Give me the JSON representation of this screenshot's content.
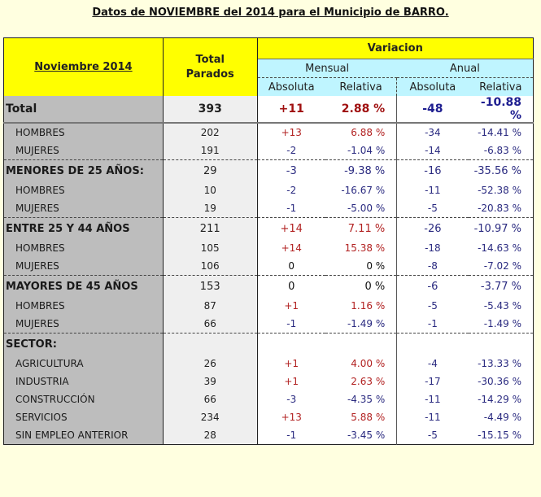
{
  "title": "Datos de NOVIEMBRE del 2014 para el Municipio de BARRO.",
  "header": {
    "period_label": "Noviembre 2014",
    "total_label_line1": "Total",
    "total_label_line2": "Parados",
    "variacion": "Variacion",
    "mensual": "Mensual",
    "anual": "Anual",
    "absoluta_m": "Absoluta",
    "relativa_m": "Relativa",
    "absoluta_a": "Absoluta",
    "relativa_a": "Relativa"
  },
  "colors": {
    "background": "#FFFFE0",
    "header_yellow": "#FFFF00",
    "header_cyan": "#BFF5FF",
    "label_gray": "#BDBDBD",
    "total_gray": "#EFEFEF",
    "positive": "#B22222",
    "negative": "#2A2A80"
  },
  "rows": [
    {
      "label": "Total",
      "total": "393",
      "m_abs": "+11",
      "m_rel": "2.88 %",
      "a_abs": "-48",
      "a_rel": "-10.88 %"
    },
    {
      "label": "HOMBRES",
      "total": "202",
      "m_abs": "+13",
      "m_rel": "6.88 %",
      "a_abs": "-34",
      "a_rel": "-14.41 %"
    },
    {
      "label": "MUJERES",
      "total": "191",
      "m_abs": "-2",
      "m_rel": "-1.04 %",
      "a_abs": "-14",
      "a_rel": "-6.83 %"
    },
    {
      "label": "MENORES DE 25 AÑOS:",
      "total": "29",
      "m_abs": "-3",
      "m_rel": "-9.38 %",
      "a_abs": "-16",
      "a_rel": "-35.56 %"
    },
    {
      "label": "HOMBRES",
      "total": "10",
      "m_abs": "-2",
      "m_rel": "-16.67 %",
      "a_abs": "-11",
      "a_rel": "-52.38 %"
    },
    {
      "label": "MUJERES",
      "total": "19",
      "m_abs": "-1",
      "m_rel": "-5.00 %",
      "a_abs": "-5",
      "a_rel": "-20.83 %"
    },
    {
      "label": "ENTRE 25 Y 44 AÑOS",
      "total": "211",
      "m_abs": "+14",
      "m_rel": "7.11 %",
      "a_abs": "-26",
      "a_rel": "-10.97 %"
    },
    {
      "label": "HOMBRES",
      "total": "105",
      "m_abs": "+14",
      "m_rel": "15.38 %",
      "a_abs": "-18",
      "a_rel": "-14.63 %"
    },
    {
      "label": "MUJERES",
      "total": "106",
      "m_abs": "0",
      "m_rel": "0 %",
      "a_abs": "-8",
      "a_rel": "-7.02 %"
    },
    {
      "label": "MAYORES DE 45 AÑOS",
      "total": "153",
      "m_abs": "0",
      "m_rel": "0 %",
      "a_abs": "-6",
      "a_rel": "-3.77 %"
    },
    {
      "label": "HOMBRES",
      "total": "87",
      "m_abs": "+1",
      "m_rel": "1.16 %",
      "a_abs": "-5",
      "a_rel": "-5.43 %"
    },
    {
      "label": "MUJERES",
      "total": "66",
      "m_abs": "-1",
      "m_rel": "-1.49 %",
      "a_abs": "-1",
      "a_rel": "-1.49 %"
    },
    {
      "label": "SECTOR:",
      "total": "",
      "m_abs": "",
      "m_rel": "",
      "a_abs": "",
      "a_rel": ""
    },
    {
      "label": "AGRICULTURA",
      "total": "26",
      "m_abs": "+1",
      "m_rel": "4.00 %",
      "a_abs": "-4",
      "a_rel": "-13.33 %"
    },
    {
      "label": "INDUSTRIA",
      "total": "39",
      "m_abs": "+1",
      "m_rel": "2.63 %",
      "a_abs": "-17",
      "a_rel": "-30.36 %"
    },
    {
      "label": "CONSTRUCCIÓN",
      "total": "66",
      "m_abs": "-3",
      "m_rel": "-4.35 %",
      "a_abs": "-11",
      "a_rel": "-14.29 %"
    },
    {
      "label": "SERVICIOS",
      "total": "234",
      "m_abs": "+13",
      "m_rel": "5.88 %",
      "a_abs": "-11",
      "a_rel": "-4.49 %"
    },
    {
      "label": "SIN EMPLEO ANTERIOR",
      "total": "28",
      "m_abs": "-1",
      "m_rel": "-3.45 %",
      "a_abs": "-5",
      "a_rel": "-15.15 %"
    }
  ]
}
